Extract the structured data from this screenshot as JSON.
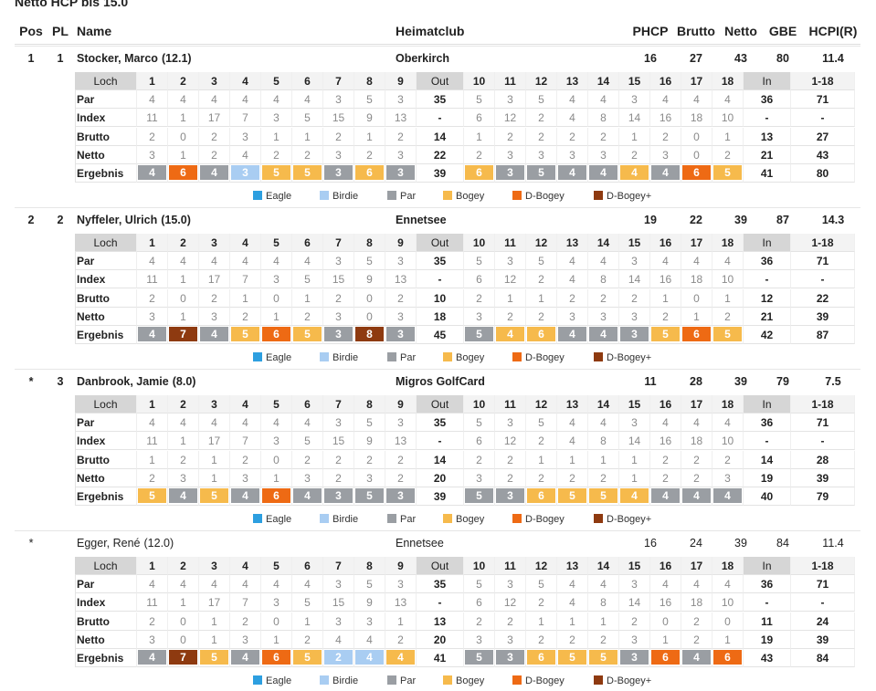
{
  "heading": "Netto HCP bis 15.0",
  "columns": [
    "Pos",
    "PL",
    "Name",
    "Heimatclub",
    "PHCP",
    "Brutto",
    "Netto",
    "GBE",
    "HCPI(R)"
  ],
  "course": {
    "loch_label": "Loch",
    "holes": [
      1,
      2,
      3,
      4,
      5,
      6,
      7,
      8,
      9,
      "Out",
      10,
      11,
      12,
      13,
      14,
      15,
      16,
      17,
      18,
      "In",
      "1-18"
    ],
    "par_label": "Par",
    "par": [
      4,
      4,
      4,
      4,
      4,
      4,
      3,
      5,
      3,
      35,
      5,
      3,
      5,
      4,
      4,
      3,
      4,
      4,
      4,
      36,
      71
    ],
    "index_label": "Index",
    "index": [
      11,
      1,
      17,
      7,
      3,
      5,
      15,
      9,
      13,
      "-",
      6,
      12,
      2,
      4,
      8,
      14,
      16,
      18,
      10,
      "-",
      "-"
    ]
  },
  "labels": {
    "brutto": "Brutto",
    "netto": "Netto",
    "ergebnis": "Ergebnis"
  },
  "legend": [
    {
      "name": "Eagle",
      "color": "#2d9fe0"
    },
    {
      "name": "Birdie",
      "color": "#a9cdf2"
    },
    {
      "name": "Par",
      "color": "#9a9ea3"
    },
    {
      "name": "Bogey",
      "color": "#f6ba4c"
    },
    {
      "name": "D-Bogey",
      "color": "#ee6a14"
    },
    {
      "name": "D-Bogey+",
      "color": "#8e3a10"
    }
  ],
  "players": [
    {
      "pos": "1",
      "pl": "1",
      "name": "Stocker, Marco",
      "hcp": "(12.1)",
      "club": "Oberkirch",
      "phcp": 16,
      "brutto_total": 27,
      "netto_total": 43,
      "gbe": 80,
      "hcpi": 11.4,
      "bold": true,
      "brutto": [
        2,
        0,
        2,
        3,
        1,
        1,
        2,
        1,
        2,
        14,
        1,
        2,
        2,
        2,
        2,
        1,
        2,
        0,
        1,
        13,
        27
      ],
      "netto": [
        3,
        1,
        2,
        4,
        2,
        2,
        3,
        2,
        3,
        22,
        2,
        3,
        3,
        3,
        3,
        2,
        3,
        0,
        2,
        21,
        43
      ],
      "ergebnis": [
        4,
        6,
        4,
        3,
        5,
        5,
        3,
        6,
        3,
        39,
        6,
        3,
        5,
        4,
        4,
        4,
        4,
        6,
        5,
        41,
        80
      ]
    },
    {
      "pos": "2",
      "pl": "2",
      "name": "Nyffeler, Ulrich",
      "hcp": "(15.0)",
      "club": "Ennetsee",
      "phcp": 19,
      "brutto_total": 22,
      "netto_total": 39,
      "gbe": 87,
      "hcpi": 14.3,
      "bold": true,
      "brutto": [
        2,
        0,
        2,
        1,
        0,
        1,
        2,
        0,
        2,
        10,
        2,
        1,
        1,
        2,
        2,
        2,
        1,
        0,
        1,
        12,
        22
      ],
      "netto": [
        3,
        1,
        3,
        2,
        1,
        2,
        3,
        0,
        3,
        18,
        3,
        2,
        2,
        3,
        3,
        3,
        2,
        1,
        2,
        21,
        39
      ],
      "ergebnis": [
        4,
        7,
        4,
        5,
        6,
        5,
        3,
        8,
        3,
        45,
        5,
        4,
        6,
        4,
        4,
        3,
        5,
        6,
        5,
        42,
        87
      ]
    },
    {
      "pos": "*",
      "pl": "3",
      "name": "Danbrook, Jamie",
      "hcp": "(8.0)",
      "club": "Migros GolfCard",
      "phcp": 11,
      "brutto_total": 28,
      "netto_total": 39,
      "gbe": 79,
      "hcpi": 7.5,
      "bold": true,
      "brutto": [
        1,
        2,
        1,
        2,
        0,
        2,
        2,
        2,
        2,
        14,
        2,
        2,
        1,
        1,
        1,
        1,
        2,
        2,
        2,
        14,
        28
      ],
      "netto": [
        2,
        3,
        1,
        3,
        1,
        3,
        2,
        3,
        2,
        20,
        3,
        2,
        2,
        2,
        2,
        1,
        2,
        2,
        3,
        19,
        39
      ],
      "ergebnis": [
        5,
        4,
        5,
        4,
        6,
        4,
        3,
        5,
        3,
        39,
        5,
        3,
        6,
        5,
        5,
        4,
        4,
        4,
        4,
        40,
        79
      ]
    },
    {
      "pos": "*",
      "name": "Egger, René",
      "hcp": "(12.0)",
      "club": "Ennetsee",
      "phcp": 16,
      "brutto_total": 24,
      "netto_total": 39,
      "gbe": 84,
      "hcpi": 11.4,
      "bold": false,
      "brutto": [
        2,
        0,
        1,
        2,
        0,
        1,
        3,
        3,
        1,
        13,
        2,
        2,
        1,
        1,
        1,
        2,
        0,
        2,
        0,
        11,
        24
      ],
      "netto": [
        3,
        0,
        1,
        3,
        1,
        2,
        4,
        4,
        2,
        20,
        3,
        3,
        2,
        2,
        2,
        3,
        1,
        2,
        1,
        19,
        39
      ],
      "ergebnis": [
        4,
        7,
        5,
        4,
        6,
        5,
        2,
        4,
        4,
        41,
        5,
        3,
        6,
        5,
        5,
        3,
        6,
        4,
        6,
        43,
        84
      ]
    }
  ]
}
